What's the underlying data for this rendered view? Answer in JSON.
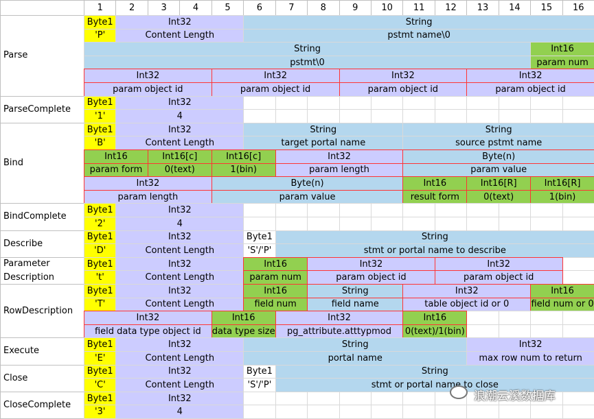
{
  "columns": [
    "1",
    "2",
    "3",
    "4",
    "5",
    "6",
    "7",
    "8",
    "9",
    "10",
    "11",
    "12",
    "13",
    "14",
    "15",
    "16"
  ],
  "messages": [
    {
      "label": "Parse",
      "rows": [
        [
          {
            "s": 1,
            "w": 1,
            "t": "Byte1",
            "c": "y"
          },
          {
            "s": 2,
            "w": 4,
            "t": "Int32",
            "c": "p"
          },
          {
            "s": 6,
            "w": 11,
            "t": "String",
            "c": "b"
          }
        ],
        [
          {
            "s": 1,
            "w": 1,
            "t": "'P'",
            "c": "y"
          },
          {
            "s": 2,
            "w": 4,
            "t": "Content Length",
            "c": "p"
          },
          {
            "s": 6,
            "w": 11,
            "t": "pstmt name\\0",
            "c": "b"
          }
        ],
        [
          {
            "s": 1,
            "w": 14,
            "t": "String",
            "c": "b"
          },
          {
            "s": 15,
            "w": 2,
            "t": "Int16",
            "c": "g"
          }
        ],
        [
          {
            "s": 1,
            "w": 14,
            "t": "pstmt\\0",
            "c": "b"
          },
          {
            "s": 15,
            "w": 2,
            "t": "param num",
            "c": "g"
          }
        ],
        [
          {
            "s": 1,
            "w": 4,
            "t": "Int32",
            "c": "p",
            "r": 1
          },
          {
            "s": 5,
            "w": 4,
            "t": "Int32",
            "c": "p",
            "r": 1
          },
          {
            "s": 9,
            "w": 4,
            "t": "Int32",
            "c": "p",
            "r": 1
          },
          {
            "s": 13,
            "w": 4,
            "t": "Int32",
            "c": "p",
            "r": 1
          }
        ],
        [
          {
            "s": 1,
            "w": 4,
            "t": "param object id",
            "c": "p",
            "r": 1
          },
          {
            "s": 5,
            "w": 4,
            "t": "param object id",
            "c": "p",
            "r": 1
          },
          {
            "s": 9,
            "w": 4,
            "t": "param object id",
            "c": "p",
            "r": 1
          },
          {
            "s": 13,
            "w": 4,
            "t": "param object id",
            "c": "p",
            "r": 1
          }
        ]
      ]
    },
    {
      "label": "ParseComplete",
      "rows": [
        [
          {
            "s": 1,
            "w": 1,
            "t": "Byte1",
            "c": "y"
          },
          {
            "s": 2,
            "w": 4,
            "t": "Int32",
            "c": "p"
          }
        ],
        [
          {
            "s": 1,
            "w": 1,
            "t": "'1'",
            "c": "y"
          },
          {
            "s": 2,
            "w": 4,
            "t": "4",
            "c": "p"
          }
        ]
      ]
    },
    {
      "label": "Bind",
      "rows": [
        [
          {
            "s": 1,
            "w": 1,
            "t": "Byte1",
            "c": "y"
          },
          {
            "s": 2,
            "w": 4,
            "t": "Int32",
            "c": "p"
          },
          {
            "s": 6,
            "w": 5,
            "t": "String",
            "c": "b"
          },
          {
            "s": 11,
            "w": 6,
            "t": "String",
            "c": "b"
          }
        ],
        [
          {
            "s": 1,
            "w": 1,
            "t": "'B'",
            "c": "y"
          },
          {
            "s": 2,
            "w": 4,
            "t": "Content Length",
            "c": "p"
          },
          {
            "s": 6,
            "w": 5,
            "t": "target portal name",
            "c": "b"
          },
          {
            "s": 11,
            "w": 6,
            "t": "source pstmt name",
            "c": "b"
          }
        ],
        [
          {
            "s": 1,
            "w": 2,
            "t": "Int16",
            "c": "g",
            "r": 1
          },
          {
            "s": 3,
            "w": 2,
            "t": "Int16[c]",
            "c": "g",
            "r": 1
          },
          {
            "s": 5,
            "w": 2,
            "t": "Int16[c]",
            "c": "g",
            "r": 1
          },
          {
            "s": 7,
            "w": 4,
            "t": "Int32",
            "c": "p",
            "r": 1
          },
          {
            "s": 11,
            "w": 6,
            "t": "Byte(n)",
            "c": "b",
            "r": 1
          }
        ],
        [
          {
            "s": 1,
            "w": 2,
            "t": "param form",
            "c": "g",
            "r": 1
          },
          {
            "s": 3,
            "w": 2,
            "t": "0(text)",
            "c": "g",
            "r": 1
          },
          {
            "s": 5,
            "w": 2,
            "t": "1(bin)",
            "c": "g",
            "r": 1
          },
          {
            "s": 7,
            "w": 4,
            "t": "param length",
            "c": "p",
            "r": 1
          },
          {
            "s": 11,
            "w": 6,
            "t": "param value",
            "c": "b",
            "r": 1
          }
        ],
        [
          {
            "s": 1,
            "w": 4,
            "t": "Int32",
            "c": "p",
            "r": 1
          },
          {
            "s": 5,
            "w": 6,
            "t": "Byte(n)",
            "c": "b",
            "r": 1
          },
          {
            "s": 11,
            "w": 2,
            "t": "Int16",
            "c": "g",
            "r": 1
          },
          {
            "s": 13,
            "w": 2,
            "t": "Int16[R]",
            "c": "g",
            "r": 1
          },
          {
            "s": 15,
            "w": 2,
            "t": "Int16[R]",
            "c": "g",
            "r": 1
          }
        ],
        [
          {
            "s": 1,
            "w": 4,
            "t": "param length",
            "c": "p",
            "r": 1
          },
          {
            "s": 5,
            "w": 6,
            "t": "param value",
            "c": "b",
            "r": 1
          },
          {
            "s": 11,
            "w": 2,
            "t": "result form",
            "c": "g",
            "r": 1
          },
          {
            "s": 13,
            "w": 2,
            "t": "0(text)",
            "c": "g",
            "r": 1
          },
          {
            "s": 15,
            "w": 2,
            "t": "1(bin)",
            "c": "g",
            "r": 1
          }
        ]
      ]
    },
    {
      "label": "BindComplete",
      "rows": [
        [
          {
            "s": 1,
            "w": 1,
            "t": "Byte1",
            "c": "y"
          },
          {
            "s": 2,
            "w": 4,
            "t": "Int32",
            "c": "p"
          }
        ],
        [
          {
            "s": 1,
            "w": 1,
            "t": "'2'",
            "c": "y"
          },
          {
            "s": 2,
            "w": 4,
            "t": "4",
            "c": "p"
          }
        ]
      ]
    },
    {
      "label": "Describe",
      "rows": [
        [
          {
            "s": 1,
            "w": 1,
            "t": "Byte1",
            "c": "y"
          },
          {
            "s": 2,
            "w": 4,
            "t": "Int32",
            "c": "p"
          },
          {
            "s": 6,
            "w": 1,
            "t": "Byte1",
            "c": "e"
          },
          {
            "s": 7,
            "w": 10,
            "t": "String",
            "c": "b"
          }
        ],
        [
          {
            "s": 1,
            "w": 1,
            "t": "'D'",
            "c": "y"
          },
          {
            "s": 2,
            "w": 4,
            "t": "Content Length",
            "c": "p"
          },
          {
            "s": 6,
            "w": 1,
            "t": "'S'/'P'",
            "c": "e"
          },
          {
            "s": 7,
            "w": 10,
            "t": "stmt or portal name to describe",
            "c": "b"
          }
        ]
      ]
    },
    {
      "label": "Parameter Description",
      "rows": [
        [
          {
            "s": 1,
            "w": 1,
            "t": "Byte1",
            "c": "y"
          },
          {
            "s": 2,
            "w": 4,
            "t": "Int32",
            "c": "p"
          },
          {
            "s": 6,
            "w": 2,
            "t": "Int16",
            "c": "g",
            "r": 1
          },
          {
            "s": 8,
            "w": 4,
            "t": "Int32",
            "c": "p",
            "r": 1
          },
          {
            "s": 12,
            "w": 4,
            "t": "Int32",
            "c": "p",
            "r": 1
          }
        ],
        [
          {
            "s": 1,
            "w": 1,
            "t": "'t'",
            "c": "y"
          },
          {
            "s": 2,
            "w": 4,
            "t": "Content Length",
            "c": "p"
          },
          {
            "s": 6,
            "w": 2,
            "t": "param num",
            "c": "g",
            "r": 1
          },
          {
            "s": 8,
            "w": 4,
            "t": "param object id",
            "c": "p",
            "r": 1
          },
          {
            "s": 12,
            "w": 4,
            "t": "param object id",
            "c": "p",
            "r": 1
          }
        ]
      ]
    },
    {
      "label": "RowDescription",
      "rows": [
        [
          {
            "s": 1,
            "w": 1,
            "t": "Byte1",
            "c": "y"
          },
          {
            "s": 2,
            "w": 4,
            "t": "Int32",
            "c": "p"
          },
          {
            "s": 6,
            "w": 2,
            "t": "Int16",
            "c": "g",
            "r": 1
          },
          {
            "s": 8,
            "w": 3,
            "t": "String",
            "c": "b",
            "r": 1
          },
          {
            "s": 11,
            "w": 4,
            "t": "Int32",
            "c": "p",
            "r": 1
          },
          {
            "s": 15,
            "w": 2,
            "t": "Int16",
            "c": "g",
            "r": 1
          }
        ],
        [
          {
            "s": 1,
            "w": 1,
            "t": "'T'",
            "c": "y"
          },
          {
            "s": 2,
            "w": 4,
            "t": "Content Length",
            "c": "p"
          },
          {
            "s": 6,
            "w": 2,
            "t": "field num",
            "c": "g",
            "r": 1
          },
          {
            "s": 8,
            "w": 3,
            "t": "field name",
            "c": "b",
            "r": 1
          },
          {
            "s": 11,
            "w": 4,
            "t": "table object id or 0",
            "c": "p",
            "r": 1
          },
          {
            "s": 15,
            "w": 2,
            "t": "field num or 0",
            "c": "g",
            "r": 1
          }
        ],
        [
          {
            "s": 1,
            "w": 4,
            "t": "Int32",
            "c": "p",
            "r": 1
          },
          {
            "s": 5,
            "w": 2,
            "t": "Int16",
            "c": "g",
            "r": 1
          },
          {
            "s": 7,
            "w": 4,
            "t": "Int32",
            "c": "p",
            "r": 1
          },
          {
            "s": 11,
            "w": 2,
            "t": "Int16",
            "c": "g",
            "r": 1
          }
        ],
        [
          {
            "s": 1,
            "w": 4,
            "t": "field data type object id",
            "c": "p",
            "r": 1
          },
          {
            "s": 5,
            "w": 2,
            "t": "data type size",
            "c": "g",
            "r": 1
          },
          {
            "s": 7,
            "w": 4,
            "t": "pg_attribute.atttypmod",
            "c": "p",
            "r": 1
          },
          {
            "s": 11,
            "w": 2,
            "t": "0(text)/1(bin)",
            "c": "g",
            "r": 1
          }
        ]
      ]
    },
    {
      "label": "Execute",
      "rows": [
        [
          {
            "s": 1,
            "w": 1,
            "t": "Byte1",
            "c": "y"
          },
          {
            "s": 2,
            "w": 4,
            "t": "Int32",
            "c": "p"
          },
          {
            "s": 6,
            "w": 7,
            "t": "String",
            "c": "b"
          },
          {
            "s": 13,
            "w": 4,
            "t": "Int32",
            "c": "p"
          }
        ],
        [
          {
            "s": 1,
            "w": 1,
            "t": "'E'",
            "c": "y"
          },
          {
            "s": 2,
            "w": 4,
            "t": "Content Length",
            "c": "p"
          },
          {
            "s": 6,
            "w": 7,
            "t": "portal name",
            "c": "b"
          },
          {
            "s": 13,
            "w": 4,
            "t": "max row num to return",
            "c": "p"
          }
        ]
      ]
    },
    {
      "label": "Close",
      "rows": [
        [
          {
            "s": 1,
            "w": 1,
            "t": "Byte1",
            "c": "y"
          },
          {
            "s": 2,
            "w": 4,
            "t": "Int32",
            "c": "p"
          },
          {
            "s": 6,
            "w": 1,
            "t": "Byte1",
            "c": "e"
          },
          {
            "s": 7,
            "w": 10,
            "t": "String",
            "c": "b"
          }
        ],
        [
          {
            "s": 1,
            "w": 1,
            "t": "'C'",
            "c": "y"
          },
          {
            "s": 2,
            "w": 4,
            "t": "Content Length",
            "c": "p"
          },
          {
            "s": 6,
            "w": 1,
            "t": "'S'/'P'",
            "c": "e"
          },
          {
            "s": 7,
            "w": 10,
            "t": "stmt or portal name to close",
            "c": "b"
          }
        ]
      ]
    },
    {
      "label": "CloseComplete",
      "rows": [
        [
          {
            "s": 1,
            "w": 1,
            "t": "Byte1",
            "c": "y"
          },
          {
            "s": 2,
            "w": 4,
            "t": "Int32",
            "c": "p"
          }
        ],
        [
          {
            "s": 1,
            "w": 1,
            "t": "'3'",
            "c": "y"
          },
          {
            "s": 2,
            "w": 4,
            "t": "4",
            "c": "p"
          }
        ]
      ]
    }
  ],
  "watermark": "浪潮云溪数据库"
}
